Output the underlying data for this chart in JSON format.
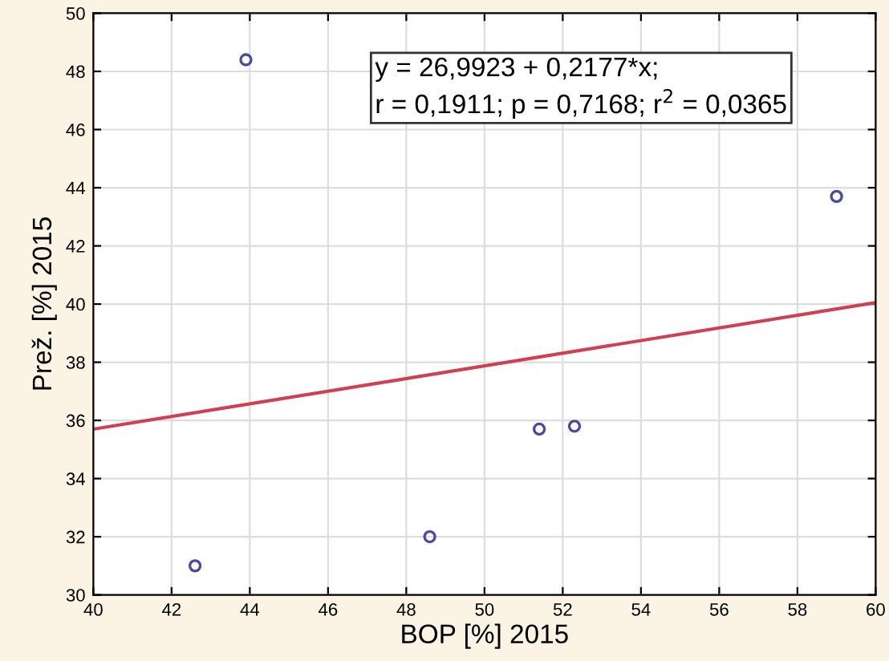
{
  "chart_data": {
    "type": "scatter",
    "xlabel": "BOP [%] 2015",
    "ylabel": "Prež. [%] 2015",
    "annotations": [
      "y = 26,9923 + 0,2177*x;\nr = 0,1911; p = 0,7168; r$^{2}$ = 0,0365"
    ],
    "xlim": [
      40,
      60
    ],
    "xticks": [
      40,
      42,
      44,
      46,
      48,
      50,
      52,
      54,
      56,
      58,
      60
    ],
    "ylim": [
      30,
      50
    ],
    "yticks": [
      30,
      32,
      34,
      36,
      38,
      40,
      42,
      44,
      46,
      48,
      50
    ],
    "grid": true,
    "series": [
      {
        "marker": "circle",
        "color": "#4a4aa0",
        "x": [
          42.6,
          43.9,
          48.6,
          51.4,
          52.3,
          59.0
        ],
        "values": [
          31.0,
          48.4,
          32.0,
          35.7,
          35.8,
          43.7
        ]
      },
      {
        "type": "line",
        "marker": "none",
        "color": "#d04050",
        "x": [
          40,
          60
        ],
        "values": [
          35.7,
          40.05
        ]
      }
    ]
  }
}
